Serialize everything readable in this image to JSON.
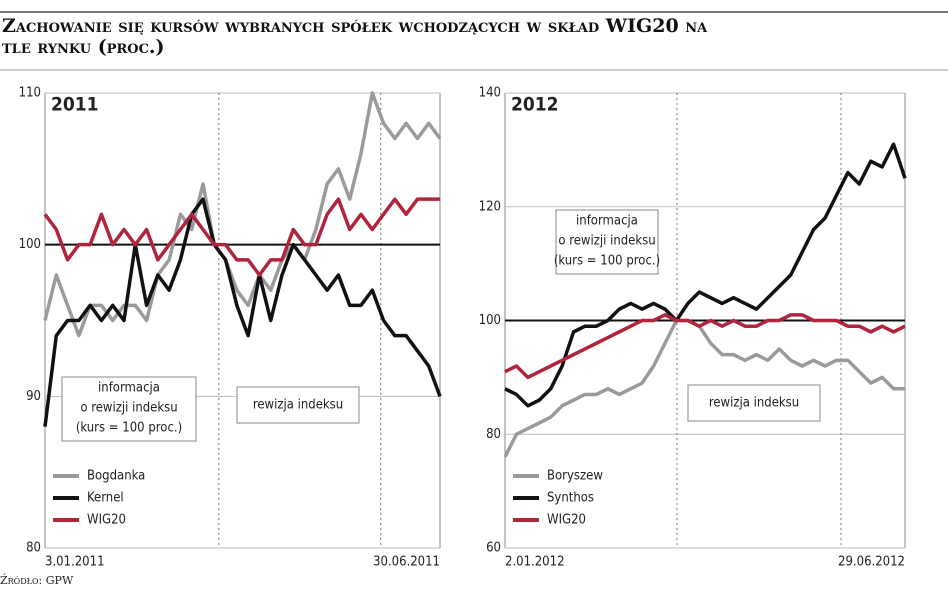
{
  "title": "Zachowanie się kursów wybranych spółek wchodzących w skład WIG20 na tle rynku (proc.)",
  "source": "Źródło: GPW",
  "chart_data": [
    {
      "type": "line",
      "title": "2011",
      "categories": [
        "3.01.2011",
        null,
        null,
        null,
        null,
        null,
        null,
        null,
        null,
        null,
        null,
        null,
        null,
        null,
        null,
        null,
        null,
        null,
        null,
        null,
        null,
        null,
        null,
        null,
        null,
        null,
        null,
        null,
        null,
        null,
        null,
        null,
        null,
        null,
        null,
        "30.06.2011"
      ],
      "series": [
        {
          "name": "Bogdanka",
          "color": "#9a9a9a",
          "values": [
            95,
            98,
            96,
            94,
            96,
            96,
            95,
            96,
            96,
            95,
            98,
            99,
            102,
            101,
            104,
            100,
            99,
            97,
            96,
            98,
            97,
            99,
            100,
            99,
            101,
            104,
            105,
            103,
            106,
            110,
            108,
            107,
            108,
            107,
            108,
            107
          ]
        },
        {
          "name": "Kernel",
          "color": "#111111",
          "values": [
            88,
            94,
            95,
            95,
            96,
            95,
            96,
            95,
            100,
            96,
            98,
            97,
            99,
            102,
            103,
            100,
            99,
            96,
            94,
            98,
            95,
            98,
            100,
            99,
            98,
            97,
            98,
            96,
            96,
            97,
            95,
            94,
            94,
            93,
            92,
            90
          ]
        },
        {
          "name": "WIG20",
          "color": "#b0243c",
          "values": [
            102,
            101,
            99,
            100,
            100,
            102,
            100,
            101,
            100,
            101,
            99,
            100,
            101,
            102,
            101,
            100,
            100,
            99,
            99,
            98,
            99,
            99,
            101,
            100,
            100,
            102,
            103,
            101,
            102,
            101,
            102,
            103,
            102,
            103,
            103,
            103
          ]
        }
      ],
      "ylim": [
        80,
        110
      ],
      "yticks": [
        80,
        90,
        100,
        110
      ],
      "reference_line": 100,
      "grid": true,
      "legend": "lower left",
      "annotations": [
        {
          "lines": [
            "informacja",
            "o rewizji indeksu",
            "(kurs = 100 proc.)"
          ]
        },
        {
          "lines": [
            "rewizja indeksu"
          ]
        }
      ]
    },
    {
      "type": "line",
      "title": "2012",
      "categories": [
        "2.01.2012",
        null,
        null,
        null,
        null,
        null,
        null,
        null,
        null,
        null,
        null,
        null,
        null,
        null,
        null,
        null,
        null,
        null,
        null,
        null,
        null,
        null,
        null,
        null,
        null,
        null,
        null,
        null,
        null,
        null,
        null,
        null,
        null,
        null,
        null,
        "29.06.2012"
      ],
      "series": [
        {
          "name": "Boryszew",
          "color": "#9a9a9a",
          "values": [
            76,
            80,
            81,
            82,
            83,
            85,
            86,
            87,
            87,
            88,
            87,
            88,
            89,
            92,
            96,
            100,
            100,
            99,
            96,
            94,
            94,
            93,
            94,
            93,
            95,
            93,
            92,
            93,
            92,
            93,
            93,
            91,
            89,
            90,
            88,
            88
          ]
        },
        {
          "name": "Synthos",
          "color": "#111111",
          "values": [
            88,
            87,
            85,
            86,
            88,
            92,
            98,
            99,
            99,
            100,
            102,
            103,
            102,
            103,
            102,
            100,
            103,
            105,
            104,
            103,
            104,
            103,
            102,
            104,
            106,
            108,
            112,
            116,
            118,
            122,
            126,
            124,
            128,
            127,
            131,
            125
          ]
        },
        {
          "name": "WIG20",
          "color": "#b0243c",
          "values": [
            91,
            92,
            90,
            91,
            92,
            93,
            94,
            95,
            96,
            97,
            98,
            99,
            100,
            100,
            101,
            100,
            100,
            99,
            100,
            99,
            100,
            99,
            99,
            100,
            100,
            101,
            101,
            100,
            100,
            100,
            99,
            99,
            98,
            99,
            98,
            99
          ]
        }
      ],
      "ylim": [
        60,
        140
      ],
      "yticks": [
        60,
        80,
        100,
        120,
        140
      ],
      "reference_line": 100,
      "grid": true,
      "legend": "lower left",
      "annotations": [
        {
          "lines": [
            "informacja",
            "o rewizji indeksu",
            "(kurs = 100 proc.)"
          ]
        },
        {
          "lines": [
            "rewizja indeksu"
          ]
        }
      ]
    }
  ]
}
